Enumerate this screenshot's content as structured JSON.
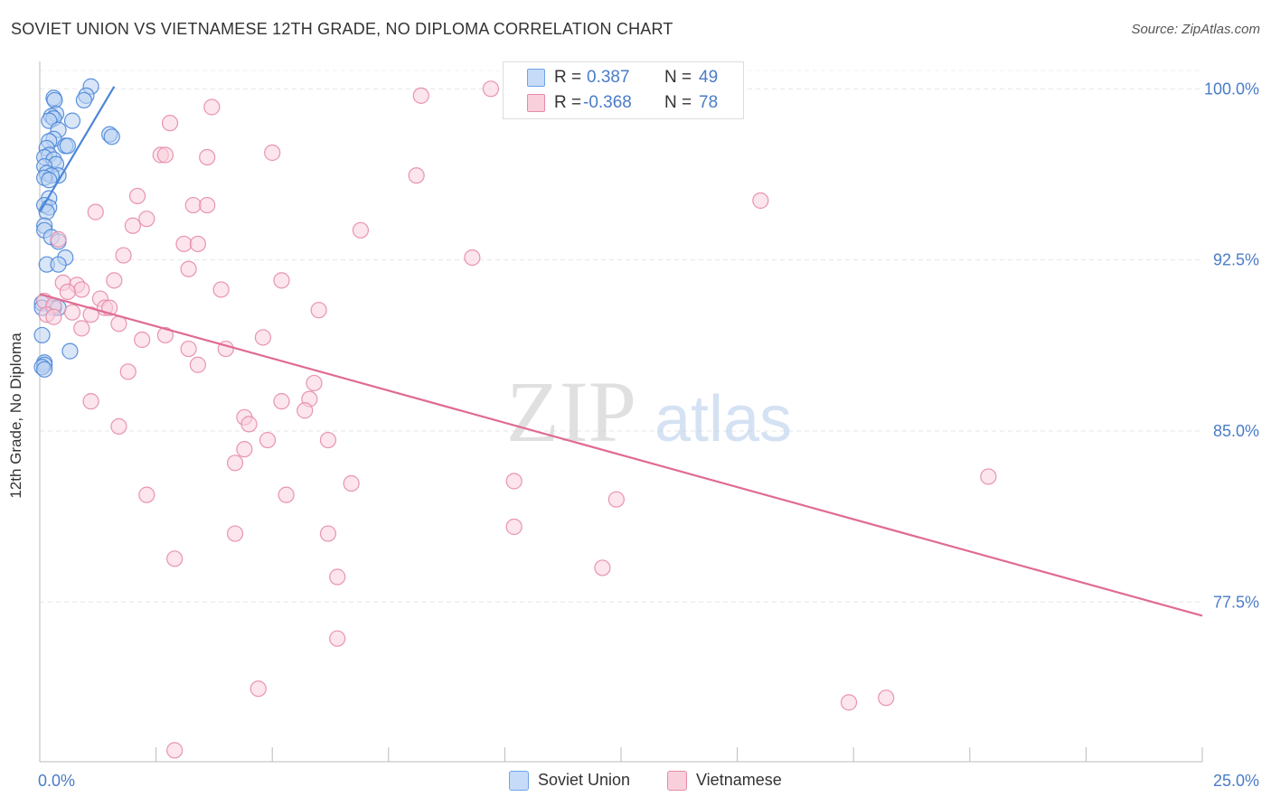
{
  "header": {
    "title": "SOVIET UNION VS VIETNAMESE 12TH GRADE, NO DIPLOMA CORRELATION CHART",
    "source": "Source: ZipAtlas.com"
  },
  "watermark": {
    "zip": "ZIP",
    "atlas": "atlas"
  },
  "legend": {
    "rows": [
      {
        "r_label": "R =",
        "r_value": "0.387",
        "n_label": "N =",
        "n_value": "49",
        "color": "#6fa3e6",
        "fill": "#c5dbf7"
      },
      {
        "r_label": "R =",
        "r_value": "-0.368",
        "n_label": "N =",
        "n_value": "78",
        "color": "#e68aa8",
        "fill": "#f9cfdc"
      }
    ]
  },
  "bottom_legend": [
    {
      "label": "Soviet Union",
      "fill": "#c5dbf7",
      "stroke": "#6fa3e6"
    },
    {
      "label": "Vietnamese",
      "fill": "#f9cfdc",
      "stroke": "#e68aa8"
    }
  ],
  "chart_data": {
    "type": "scatter",
    "title": "SOVIET UNION VS VIETNAMESE 12TH GRADE, NO DIPLOMA CORRELATION CHART",
    "xlabel": "",
    "ylabel": "12th Grade, No Diploma",
    "xlim": [
      0,
      25
    ],
    "ylim": [
      70.5,
      101.2
    ],
    "x_tick_labels": [
      {
        "value": 0,
        "label": "0.0%"
      },
      {
        "value": 25,
        "label": "25.0%"
      }
    ],
    "y_tick_labels": [
      {
        "value": 100,
        "label": "100.0%"
      },
      {
        "value": 92.5,
        "label": "92.5%"
      },
      {
        "value": 85,
        "label": "85.0%"
      },
      {
        "value": 77.5,
        "label": "77.5%"
      }
    ],
    "grid": true,
    "colors": {
      "soviet": "#4a86d8",
      "vietnamese": "#e06a92",
      "tick_label": "#4a7cc7"
    },
    "series": [
      {
        "name": "Soviet Union",
        "r": 0.387,
        "n": 49,
        "trend": {
          "x": [
            0.0,
            1.6
          ],
          "y": [
            94.6,
            100.1
          ]
        },
        "points": [
          [
            1.1,
            100.1
          ],
          [
            1.0,
            99.7
          ],
          [
            0.95,
            99.5
          ],
          [
            0.3,
            99.6
          ],
          [
            0.32,
            99.5
          ],
          [
            0.35,
            98.9
          ],
          [
            0.25,
            98.8
          ],
          [
            0.3,
            98.7
          ],
          [
            0.7,
            98.6
          ],
          [
            0.2,
            98.6
          ],
          [
            0.4,
            98.2
          ],
          [
            1.5,
            98.0
          ],
          [
            1.55,
            97.9
          ],
          [
            0.3,
            97.8
          ],
          [
            0.2,
            97.7
          ],
          [
            0.55,
            97.5
          ],
          [
            0.6,
            97.5
          ],
          [
            0.15,
            97.4
          ],
          [
            0.2,
            97.1
          ],
          [
            0.1,
            97.0
          ],
          [
            0.3,
            96.9
          ],
          [
            0.35,
            96.7
          ],
          [
            0.1,
            96.6
          ],
          [
            0.15,
            96.3
          ],
          [
            0.4,
            96.2
          ],
          [
            0.25,
            96.2
          ],
          [
            0.1,
            96.1
          ],
          [
            0.2,
            96.0
          ],
          [
            0.2,
            95.2
          ],
          [
            0.1,
            94.9
          ],
          [
            0.2,
            94.8
          ],
          [
            0.15,
            94.6
          ],
          [
            0.1,
            94.0
          ],
          [
            0.1,
            93.8
          ],
          [
            0.25,
            93.5
          ],
          [
            0.4,
            93.3
          ],
          [
            0.55,
            92.6
          ],
          [
            0.15,
            92.3
          ],
          [
            0.4,
            92.3
          ],
          [
            0.05,
            90.6
          ],
          [
            0.05,
            90.4
          ],
          [
            0.3,
            90.4
          ],
          [
            0.4,
            90.4
          ],
          [
            0.05,
            89.2
          ],
          [
            0.65,
            88.5
          ],
          [
            0.1,
            88.0
          ],
          [
            0.1,
            87.9
          ],
          [
            0.05,
            87.8
          ],
          [
            0.1,
            87.7
          ]
        ]
      },
      {
        "name": "Vietnamese",
        "r": -0.368,
        "n": 78,
        "trend": {
          "x": [
            0.0,
            25.0
          ],
          "y": [
            91.0,
            76.9
          ]
        },
        "points": [
          [
            9.7,
            100.0
          ],
          [
            8.2,
            99.7
          ],
          [
            3.7,
            99.2
          ],
          [
            2.8,
            98.5
          ],
          [
            5.0,
            97.2
          ],
          [
            2.6,
            97.1
          ],
          [
            2.7,
            97.1
          ],
          [
            3.6,
            97.0
          ],
          [
            8.1,
            96.2
          ],
          [
            15.5,
            95.1
          ],
          [
            2.1,
            95.3
          ],
          [
            3.3,
            94.9
          ],
          [
            3.6,
            94.9
          ],
          [
            1.2,
            94.6
          ],
          [
            2.3,
            94.3
          ],
          [
            2.0,
            94.0
          ],
          [
            6.9,
            93.8
          ],
          [
            0.4,
            93.4
          ],
          [
            3.1,
            93.2
          ],
          [
            3.4,
            93.2
          ],
          [
            1.8,
            92.7
          ],
          [
            9.3,
            92.6
          ],
          [
            3.2,
            92.1
          ],
          [
            1.6,
            91.6
          ],
          [
            5.2,
            91.6
          ],
          [
            0.5,
            91.5
          ],
          [
            0.8,
            91.4
          ],
          [
            0.9,
            91.2
          ],
          [
            0.6,
            91.1
          ],
          [
            3.9,
            91.2
          ],
          [
            1.3,
            90.8
          ],
          [
            0.1,
            90.7
          ],
          [
            0.3,
            90.5
          ],
          [
            1.4,
            90.4
          ],
          [
            1.5,
            90.4
          ],
          [
            6.0,
            90.3
          ],
          [
            0.7,
            90.2
          ],
          [
            0.15,
            90.1
          ],
          [
            1.1,
            90.1
          ],
          [
            0.3,
            90.0
          ],
          [
            1.7,
            89.7
          ],
          [
            0.9,
            89.5
          ],
          [
            2.7,
            89.2
          ],
          [
            4.8,
            89.1
          ],
          [
            2.2,
            89.0
          ],
          [
            3.2,
            88.6
          ],
          [
            4.0,
            88.6
          ],
          [
            3.4,
            87.9
          ],
          [
            1.9,
            87.6
          ],
          [
            5.9,
            87.1
          ],
          [
            1.1,
            86.3
          ],
          [
            5.8,
            86.4
          ],
          [
            5.2,
            86.3
          ],
          [
            5.7,
            85.9
          ],
          [
            4.4,
            85.6
          ],
          [
            4.5,
            85.3
          ],
          [
            1.7,
            85.2
          ],
          [
            4.9,
            84.6
          ],
          [
            6.2,
            84.6
          ],
          [
            4.4,
            84.2
          ],
          [
            4.2,
            83.6
          ],
          [
            20.4,
            83.0
          ],
          [
            6.7,
            82.7
          ],
          [
            10.2,
            82.8
          ],
          [
            2.3,
            82.2
          ],
          [
            5.3,
            82.2
          ],
          [
            12.4,
            82.0
          ],
          [
            10.2,
            80.8
          ],
          [
            4.2,
            80.5
          ],
          [
            6.2,
            80.5
          ],
          [
            2.9,
            79.4
          ],
          [
            12.1,
            79.0
          ],
          [
            6.4,
            78.6
          ],
          [
            6.4,
            75.9
          ],
          [
            18.2,
            73.3
          ],
          [
            17.4,
            73.1
          ],
          [
            4.7,
            73.7
          ],
          [
            2.9,
            71.0
          ]
        ]
      }
    ]
  }
}
